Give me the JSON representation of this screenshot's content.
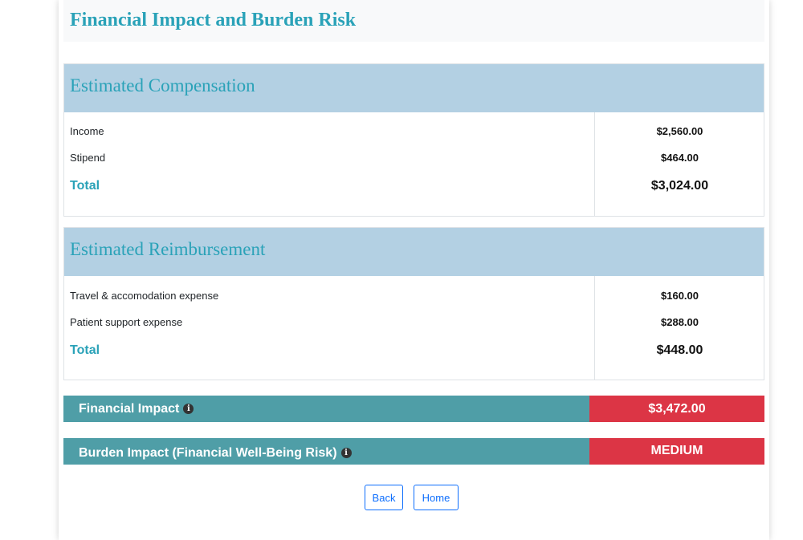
{
  "page": {
    "title": "Financial Impact and Burden Risk"
  },
  "compensation": {
    "heading": "Estimated Compensation",
    "rows": [
      {
        "label": "Income",
        "value": "$2,560.00"
      },
      {
        "label": "Stipend",
        "value": "$464.00"
      }
    ],
    "total_label": "Total",
    "total_value": "$3,024.00"
  },
  "reimbursement": {
    "heading": "Estimated Reimbursement",
    "rows": [
      {
        "label": "Travel & accomodation expense",
        "value": "$160.00"
      },
      {
        "label": "Patient support expense",
        "value": "$288.00"
      }
    ],
    "total_label": "Total",
    "total_value": "$448.00"
  },
  "financial_impact": {
    "label": "Financial Impact",
    "value": "$3,472.00",
    "icon": "info-icon"
  },
  "burden_impact": {
    "label": "Burden Impact (Financial Well-Being Risk)",
    "value": "MEDIUM",
    "icon": "info-icon"
  },
  "buttons": {
    "back": "Back",
    "home": "Home"
  },
  "colors": {
    "accent": "#2aa2b8",
    "section_header": "#b3d0e3",
    "impact_bar": "#4f9ea7",
    "danger": "#dc3545",
    "button": "#0d6efd"
  }
}
